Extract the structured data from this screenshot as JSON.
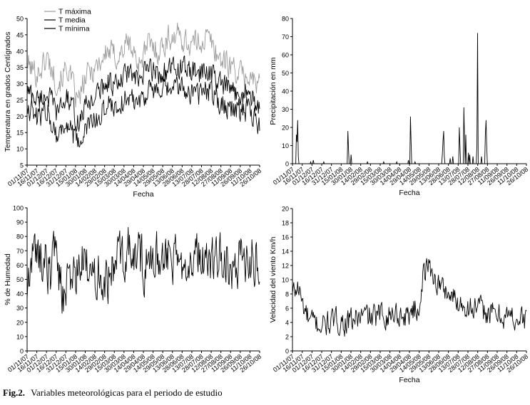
{
  "caption": {
    "label": "Fig.2.",
    "text": "Variables meteorológicas para el periodo de estudio"
  },
  "chart_data": [
    {
      "id": "temp",
      "type": "line",
      "title": "",
      "xlabel": "Fecha",
      "ylabel": "Temperatura en grados Centígrados",
      "ylim": [
        5,
        50
      ],
      "yticks": [
        5,
        10,
        15,
        20,
        25,
        30,
        35,
        40,
        45,
        50
      ],
      "xticks": [
        "01/11/07",
        "16/11/07",
        "01/12/07",
        "16/12/07",
        "31/12/07",
        "15/01/08",
        "30/01/08",
        "14/02/08",
        "29/02/08",
        "15/03/08",
        "30/03/08",
        "14/04/08",
        "29/04/08",
        "14/05/08",
        "29/05/08",
        "13/06/08",
        "28/06/08",
        "13/07/08",
        "28/07/08",
        "12/08/08",
        "27/08/08",
        "11/09/08",
        "26/09/08",
        "11/10/08",
        "26/10/08"
      ],
      "legend_position": "top-left",
      "series": [
        {
          "name": "T máxima",
          "color": "#9a9a9a",
          "anchors": [
            36,
            33,
            38,
            30,
            35,
            24,
            33,
            36,
            40,
            38,
            43,
            36,
            42,
            40,
            44,
            45,
            42,
            43,
            44,
            38,
            36,
            33,
            32,
            29
          ]
        },
        {
          "name": "T media",
          "color": "#000000",
          "anchors": [
            28,
            25,
            27,
            21,
            26,
            18,
            24,
            27,
            31,
            29,
            34,
            30,
            35,
            33,
            34,
            35,
            34,
            33,
            34,
            30,
            28,
            27,
            27,
            22
          ]
        },
        {
          "name": "T mínima",
          "color": "#000000",
          "anchors": [
            24,
            19,
            22,
            14,
            18,
            11,
            17,
            19,
            24,
            23,
            26,
            25,
            28,
            27,
            28,
            29,
            28,
            27,
            28,
            25,
            23,
            22,
            22,
            17
          ]
        }
      ]
    },
    {
      "id": "precip",
      "type": "line",
      "title": "",
      "xlabel": "Fecha",
      "ylabel": "Precipitación en mm",
      "ylim": [
        0,
        80
      ],
      "yticks": [
        0,
        10,
        20,
        30,
        40,
        50,
        60,
        70,
        80
      ],
      "xticks": [
        "01/11/07",
        "16/11/07",
        "01/12/07",
        "16/12/07",
        "31/12/07",
        "15/01/08",
        "30/01/08",
        "14/02/08",
        "29/02/08",
        "15/03/08",
        "30/03/08",
        "14/04/08",
        "29/04/08",
        "14/05/08",
        "29/05/08",
        "13/06/08",
        "28/06/08",
        "13/07/08",
        "28/07/08",
        "12/08/08",
        "27/08/08",
        "11/09/08",
        "26/09/08",
        "11/10/08",
        "26/10/08"
      ],
      "series": [
        {
          "name": "Precipitación",
          "color": "#000000",
          "events": [
            [
              6,
              16
            ],
            [
              7,
              12
            ],
            [
              8,
              24
            ],
            [
              9,
              4
            ],
            [
              28,
              1
            ],
            [
              32,
              2
            ],
            [
              48,
              1
            ],
            [
              85,
              18
            ],
            [
              86,
              8
            ],
            [
              90,
              5
            ],
            [
              115,
              1
            ],
            [
              140,
              1
            ],
            [
              160,
              1
            ],
            [
              178,
              2
            ],
            [
              181,
              26
            ],
            [
              182,
              12
            ],
            [
              188,
              1
            ],
            [
              230,
              5
            ],
            [
              231,
              13
            ],
            [
              232,
              18
            ],
            [
              233,
              4
            ],
            [
              242,
              3
            ],
            [
              246,
              4
            ],
            [
              256,
              20
            ],
            [
              257,
              10
            ],
            [
              263,
              31
            ],
            [
              264,
              14
            ],
            [
              266,
              16
            ],
            [
              270,
              6
            ],
            [
              272,
              5
            ],
            [
              277,
              4
            ],
            [
              283,
              10
            ],
            [
              284,
              72
            ],
            [
              290,
              4
            ],
            [
              296,
              16
            ],
            [
              297,
              24
            ],
            [
              298,
              10
            ]
          ]
        }
      ]
    },
    {
      "id": "hum",
      "type": "line",
      "title": "",
      "xlabel": "",
      "ylabel": "% de Humedad",
      "ylim": [
        0,
        100
      ],
      "yticks": [
        0,
        10,
        20,
        30,
        40,
        50,
        60,
        70,
        80,
        90,
        100
      ],
      "xticks": [
        "01/11/07",
        "16/11/07",
        "01/12/07",
        "16/12/07",
        "31/12/07",
        "15/01/08",
        "30/01/08",
        "14/02/08",
        "29/02/08",
        "15/03/08",
        "30/03/08",
        "14/04/08",
        "29/04/08",
        "14/05/08",
        "29/05/08",
        "13/06/08",
        "28/06/08",
        "13/07/08",
        "28/07/08",
        "12/08/08",
        "27/08/08",
        "11/09/08",
        "26/09/08",
        "11/10/08",
        "26/10/08"
      ],
      "series": [
        {
          "name": "Humedad",
          "color": "#000000",
          "anchors": [
            38,
            68,
            70,
            65,
            62,
            55,
            78,
            48,
            35,
            55,
            52,
            58,
            60,
            55,
            50,
            62,
            48,
            52,
            55,
            70,
            64,
            72,
            65,
            66,
            62,
            58,
            60,
            64,
            70,
            68,
            66,
            62,
            58,
            64,
            70,
            72,
            66,
            62,
            60,
            64,
            66,
            68,
            62,
            60,
            58,
            64,
            60,
            66,
            64,
            62
          ]
        }
      ]
    },
    {
      "id": "wind",
      "type": "line",
      "title": "",
      "xlabel": "Fecha",
      "ylabel": "Velocidad del viento Km/h",
      "ylim": [
        0,
        20
      ],
      "yticks": [
        0,
        2,
        4,
        6,
        8,
        10,
        12,
        14,
        16,
        18,
        20
      ],
      "xticks": [
        "01/11/07",
        "16/11/07",
        "01/12/07",
        "16/12/07",
        "31/12/07",
        "15/01/08",
        "30/01/08",
        "14/02/08",
        "29/02/08",
        "15/03/08",
        "30/03/08",
        "14/04/08",
        "29/04/08",
        "14/05/08",
        "29/05/08",
        "13/06/08",
        "28/06/08",
        "13/07/08",
        "28/07/08",
        "12/08/08",
        "27/08/08",
        "11/09/08",
        "26/09/08",
        "11/10/08",
        "26/10/08"
      ],
      "series": [
        {
          "name": "Viento",
          "color": "#000000",
          "anchors": [
            8,
            9,
            6,
            4,
            4,
            3.5,
            3.8,
            4,
            4.2,
            4,
            4,
            4.5,
            4.8,
            5,
            4.6,
            5,
            5.2,
            5,
            5.5,
            5,
            4.8,
            6,
            5.5,
            11,
            12,
            10,
            9,
            8.5,
            7.5,
            7,
            6.5,
            6.2,
            6,
            5.8,
            5.5,
            5.2,
            5,
            5,
            4.8,
            4.6,
            4.4,
            4.4
          ]
        }
      ]
    }
  ]
}
